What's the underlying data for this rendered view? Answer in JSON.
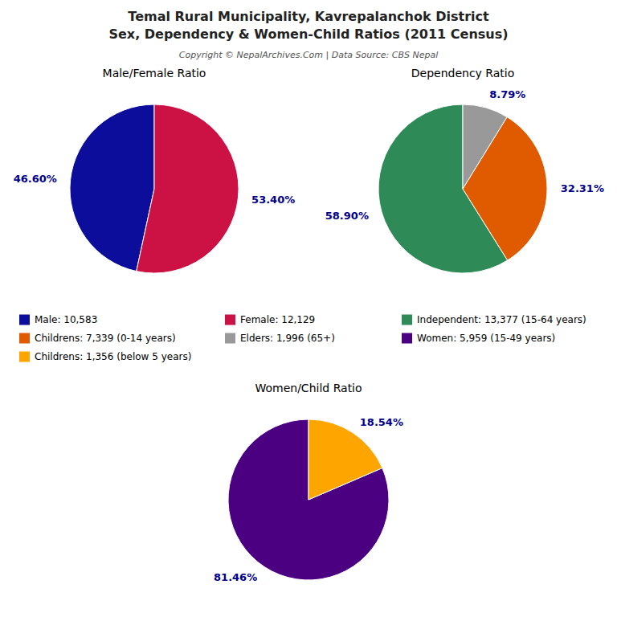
{
  "title": [
    "Temal Rural Municipality, Kavrepalanchok District",
    "Sex, Dependency & Women-Child Ratios (2011 Census)"
  ],
  "subtitle": "Copyright © NepalArchives.Com | Data Source: CBS Nepal",
  "chart_data": [
    {
      "type": "pie",
      "title": "Male/Female Ratio",
      "categories": [
        "Male: 10,583",
        "Female: 12,129"
      ],
      "values": [
        46.6,
        53.4
      ],
      "value_labels": [
        "46.60%",
        "53.40%"
      ],
      "colors": [
        "#0D0D9C",
        "#CC1144"
      ],
      "data_labels": true
    },
    {
      "type": "pie",
      "title": "Dependency Ratio",
      "categories": [
        "Independent: 13,377 (15-64 years)",
        "Childrens: 7,339 (0-14 years)",
        "Elders: 1,996 (65+)"
      ],
      "values": [
        58.9,
        32.31,
        8.79
      ],
      "value_labels": [
        "58.90%",
        "32.31%",
        "8.79%"
      ],
      "colors": [
        "#2E8B57",
        "#E05A00",
        "#999999"
      ],
      "data_labels": true
    },
    {
      "type": "pie",
      "title": "Women/Child Ratio",
      "categories": [
        "Women: 5,959 (15-49 years)",
        "Childrens: 1,356 (below 5 years)"
      ],
      "values": [
        81.46,
        18.54
      ],
      "value_labels": [
        "81.46%",
        "18.54%"
      ],
      "colors": [
        "#4B0082",
        "#FFA500"
      ],
      "data_labels": true
    }
  ]
}
